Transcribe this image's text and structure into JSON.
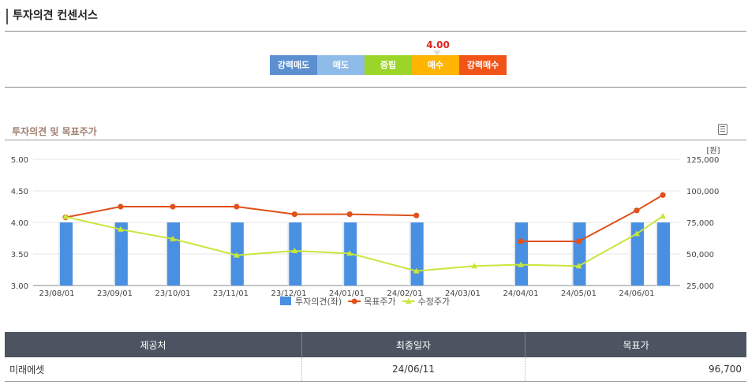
{
  "section_title": "투자의견 컨센서스",
  "rating_scale": {
    "labels": [
      "강력매도",
      "매도",
      "중립",
      "매수",
      "강력매수"
    ],
    "colors": [
      "#5b8fd0",
      "#8fbbe8",
      "#9bd52a",
      "#ffb400",
      "#f05418"
    ],
    "current_value": "4.00",
    "current_index": 3
  },
  "chart_section_title": "투자의견 및 목표주가",
  "chart_data": {
    "type": "bar+line",
    "categories": [
      "23/08/01",
      "23/09/01",
      "23/10/01",
      "23/11/01",
      "23/12/01",
      "24/01/01",
      "24/02/01",
      "24/03/01",
      "24/04/01",
      "24/05/01",
      "24/06/01"
    ],
    "left_axis": {
      "ticks": [
        "5.00",
        "4.50",
        "4.00",
        "3.50",
        "3.00"
      ],
      "ylim": [
        3.0,
        5.0
      ]
    },
    "right_axis": {
      "unit": "[원]",
      "ticks": [
        "125,000",
        "100,000",
        "75,000",
        "50,000",
        "25,000"
      ],
      "ylim": [
        25000,
        125000
      ]
    },
    "series": [
      {
        "name": "투자의견(좌)",
        "type": "bar",
        "color": "#4a90e2",
        "x": [
          0.15,
          1.1,
          2.0,
          3.1,
          4.1,
          5.05,
          6.2,
          8.0,
          9.0,
          10.0,
          10.45
        ],
        "values": [
          4.0,
          4.0,
          4.0,
          4.0,
          4.0,
          4.0,
          4.0,
          4.0,
          4.0,
          4.0,
          4.0
        ]
      },
      {
        "name": "목표주가",
        "type": "line",
        "color": "#e0501a",
        "marker": "circle",
        "x": [
          0.15,
          1.1,
          2.0,
          3.1,
          4.1,
          5.05,
          6.2,
          8.0,
          9.0,
          10.0,
          10.45
        ],
        "values": [
          79000,
          87500,
          87500,
          87500,
          81500,
          81500,
          80500,
          60000,
          60000,
          84500,
          96700
        ]
      },
      {
        "name": "수정주가",
        "type": "line",
        "color": "#c8e63c",
        "marker": "triangle",
        "x": [
          0.15,
          1.1,
          2.0,
          3.1,
          4.1,
          5.05,
          6.2,
          7.2,
          8.0,
          9.0,
          10.0,
          10.45
        ],
        "values": [
          79500,
          69500,
          62000,
          49000,
          52500,
          50500,
          36500,
          40500,
          41500,
          40500,
          66000,
          80000
        ]
      }
    ]
  },
  "table": {
    "headers": [
      "제공처",
      "최종일자",
      "목표가"
    ],
    "rows": [
      [
        "미래에셋",
        "24/06/11",
        "96,700"
      ]
    ]
  }
}
